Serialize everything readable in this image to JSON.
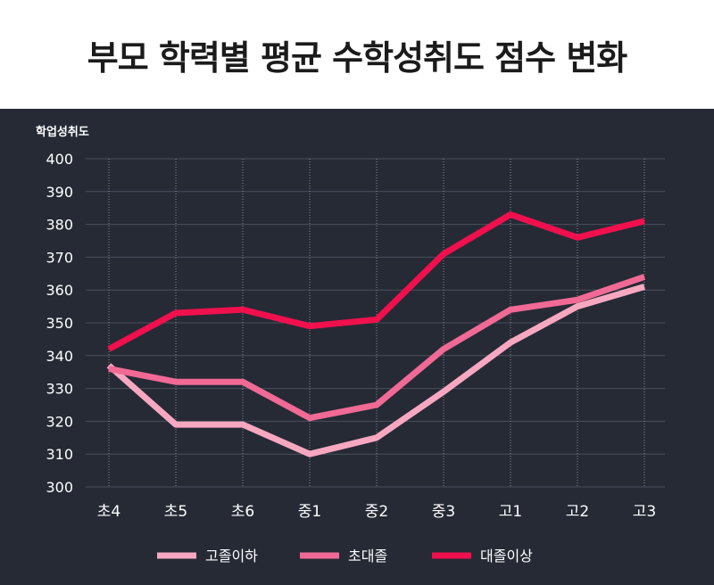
{
  "title": "부모 학력별 평균 수학성취도 점수 변화",
  "chart_data": {
    "type": "line",
    "ylabel": "학업성취도",
    "xlabel": "",
    "categories": [
      "초4",
      "초5",
      "초6",
      "중1",
      "중2",
      "중3",
      "고1",
      "고2",
      "고3"
    ],
    "ylim": [
      300,
      400
    ],
    "yticks": [
      300,
      310,
      320,
      330,
      340,
      350,
      360,
      370,
      380,
      390,
      400
    ],
    "grid": true,
    "legend_position": "bottom",
    "series": [
      {
        "name": "고졸이하",
        "color": "#f7a8c0",
        "values": [
          337,
          319,
          319,
          310,
          315,
          329,
          344,
          355,
          361
        ]
      },
      {
        "name": "초대졸",
        "color": "#f06a95",
        "values": [
          336,
          332,
          332,
          321,
          325,
          342,
          354,
          357,
          364
        ]
      },
      {
        "name": "대졸이상",
        "color": "#f0104d",
        "values": [
          342,
          353,
          354,
          349,
          351,
          371,
          383,
          376,
          381
        ]
      }
    ]
  }
}
